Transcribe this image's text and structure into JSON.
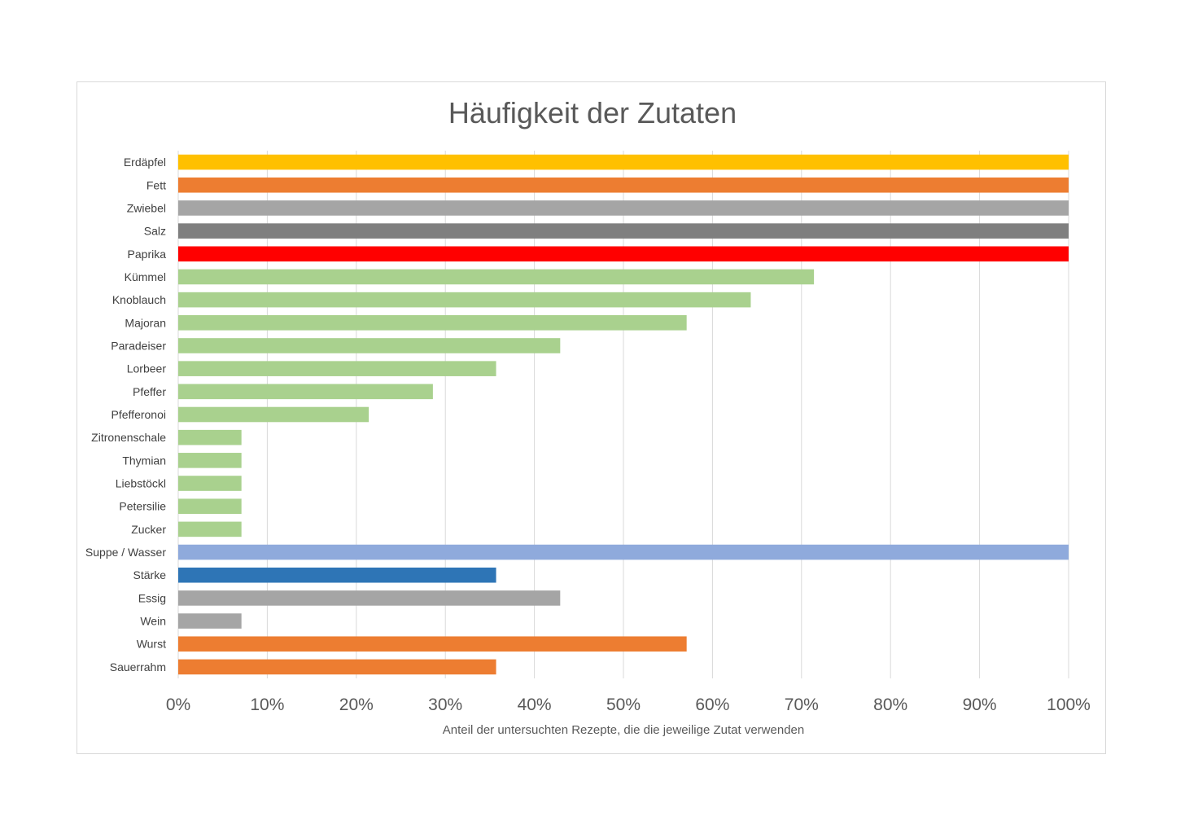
{
  "chart_data": {
    "type": "bar",
    "orientation": "horizontal",
    "title": "Häufigkeit der Zutaten",
    "xlabel": "Anteil der untersuchten Rezepte, die die jeweilige Zutat verwenden",
    "ylabel": "",
    "xlim": [
      0,
      100
    ],
    "x_ticks": [
      "0%",
      "10%",
      "20%",
      "30%",
      "40%",
      "50%",
      "60%",
      "70%",
      "80%",
      "90%",
      "100%"
    ],
    "grid": "vertical",
    "legend": "none",
    "categories": [
      "Erdäpfel",
      "Fett",
      "Zwiebel",
      "Salz",
      "Paprika",
      "Kümmel",
      "Knoblauch",
      "Majoran",
      "Paradeiser",
      "Lorbeer",
      "Pfeffer",
      "Pfefferonoi",
      "Zitronenschale",
      "Thymian",
      "Liebstöckl",
      "Petersilie",
      "Zucker",
      "Suppe / Wasser",
      "Stärke",
      "Essig",
      "Wein",
      "Wurst",
      "Sauerrahm"
    ],
    "values": [
      100,
      100,
      100,
      100,
      100,
      71.4,
      64.3,
      57.1,
      42.9,
      35.7,
      28.6,
      21.4,
      7.1,
      7.1,
      7.1,
      7.1,
      7.1,
      100,
      35.7,
      42.9,
      7.1,
      57.1,
      35.7
    ],
    "colors": [
      "#FFC000",
      "#ED7D31",
      "#A5A5A5",
      "#7F7F7F",
      "#FF0000",
      "#A9D18E",
      "#A9D18E",
      "#A9D18E",
      "#A9D18E",
      "#A9D18E",
      "#A9D18E",
      "#A9D18E",
      "#A9D18E",
      "#A9D18E",
      "#A9D18E",
      "#A9D18E",
      "#A9D18E",
      "#8FAADC",
      "#2E75B6",
      "#A5A5A5",
      "#A5A5A5",
      "#ED7D31",
      "#ED7D31"
    ]
  }
}
